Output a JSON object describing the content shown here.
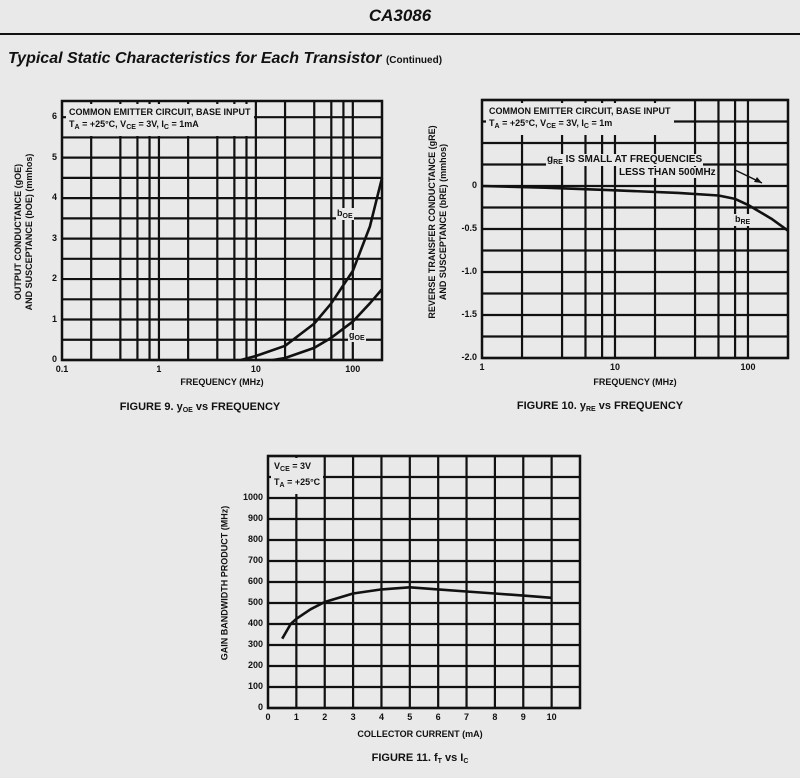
{
  "header": {
    "part_number": "CA3086"
  },
  "section": {
    "title": "Typical Static Characteristics for Each Transistor",
    "note": "(Continued)"
  },
  "chart_data": [
    {
      "type": "line",
      "caption": {
        "prefix": "FIGURE 9.  y",
        "sub": "OE",
        "suffix": " vs FREQUENCY"
      },
      "conditions": [
        [
          {
            "t": "COMMON EMITTER CIRCUIT, BASE INPUT"
          }
        ],
        [
          {
            "t": "T"
          },
          {
            "s": "A"
          },
          {
            "t": " = +25°C, V"
          },
          {
            "s": "CE"
          },
          {
            "t": " = 3V, I"
          },
          {
            "s": "C"
          },
          {
            "t": " = 1mA"
          }
        ]
      ],
      "xlabel": "FREQUENCY (MHz)",
      "ylabel": [
        "OUTPUT CONDUCTANCE (gOE)",
        "AND SUSCEPTANCE (bOE) (mmhos)"
      ],
      "xscale": "log",
      "xlim": [
        0.1,
        200
      ],
      "ylim": [
        0,
        6.4
      ],
      "xticks": [
        {
          "v": 0.1,
          "label": "0.1"
        },
        {
          "v": 1,
          "label": "1"
        },
        {
          "v": 10,
          "label": "10"
        },
        {
          "v": 100,
          "label": "100"
        }
      ],
      "yticks": [
        {
          "v": 0,
          "label": "0"
        },
        {
          "v": 1,
          "label": "1"
        },
        {
          "v": 2,
          "label": "2"
        },
        {
          "v": 3,
          "label": "3"
        },
        {
          "v": 4,
          "label": "4"
        },
        {
          "v": 5,
          "label": "5"
        },
        {
          "v": 6,
          "label": "6"
        }
      ],
      "grid": true,
      "series": [
        {
          "name": "bOE",
          "label": {
            "main": "b",
            "sub": "OE"
          },
          "x": [
            7,
            10,
            20,
            40,
            60,
            100,
            150,
            200
          ],
          "y": [
            0,
            0.1,
            0.35,
            0.9,
            1.4,
            2.2,
            3.3,
            4.5
          ]
        },
        {
          "name": "gOE",
          "label": {
            "main": "g",
            "sub": "OE"
          },
          "x": [
            15,
            20,
            40,
            60,
            100,
            150,
            200
          ],
          "y": [
            0,
            0.05,
            0.3,
            0.55,
            0.95,
            1.4,
            1.75
          ]
        }
      ]
    },
    {
      "type": "line",
      "caption": {
        "prefix": "FIGURE 10.  y",
        "sub": "RE",
        "suffix": " vs FREQUENCY"
      },
      "conditions": [
        [
          {
            "t": "COMMON EMITTER CIRCUIT, BASE INPUT"
          }
        ],
        [
          {
            "t": "T"
          },
          {
            "s": "A"
          },
          {
            "t": " = +25°C, V"
          },
          {
            "s": "CE"
          },
          {
            "t": " = 3V, I"
          },
          {
            "s": "C"
          },
          {
            "t": " = 1m"
          }
        ]
      ],
      "annotation": {
        "line1_main": "g",
        "line1_sub": "RE",
        "line1_rest": " IS SMALL AT FREQUENCIES",
        "line2": "LESS THAN 500MHz"
      },
      "xlabel": "FREQUENCY (MHz)",
      "ylabel": [
        "REVERSE TRANSFER CONDUCTANCE (gRE)",
        "AND SUSCEPTANCE (bRE) (mmhos)"
      ],
      "xscale": "log",
      "xlim": [
        1,
        200
      ],
      "ylim": [
        -2.0,
        1.0
      ],
      "xticks": [
        {
          "v": 1,
          "label": "1"
        },
        {
          "v": 10,
          "label": "10"
        },
        {
          "v": 100,
          "label": "100"
        }
      ],
      "yticks": [
        {
          "v": 0,
          "label": "0"
        },
        {
          "v": -0.5,
          "label": "-0.5"
        },
        {
          "v": -1.0,
          "label": "-1.0"
        },
        {
          "v": -1.5,
          "label": "-1.5"
        },
        {
          "v": -2.0,
          "label": "-2.0"
        }
      ],
      "grid": true,
      "series": [
        {
          "name": "bRE",
          "label": {
            "main": "b",
            "sub": "RE"
          },
          "x": [
            1,
            3,
            10,
            30,
            60,
            80,
            100,
            150,
            200
          ],
          "y": [
            0,
            -0.02,
            -0.05,
            -0.08,
            -0.11,
            -0.15,
            -0.22,
            -0.38,
            -0.52
          ]
        }
      ]
    },
    {
      "type": "line",
      "caption": {
        "prefix": "FIGURE 11.  f",
        "sub": "T",
        "suffix": " vs I",
        "sub2": "C"
      },
      "conditions": [
        [
          {
            "t": "V"
          },
          {
            "s": "CE"
          },
          {
            "t": " = 3V"
          }
        ],
        [
          {
            "t": "T"
          },
          {
            "s": "A"
          },
          {
            "t": " = +25°C"
          }
        ]
      ],
      "xlabel": "COLLECTOR CURRENT (mA)",
      "ylabel": [
        "GAIN BANDWIDTH PRODUCT (MHz)"
      ],
      "xscale": "linear",
      "xlim": [
        0,
        11
      ],
      "ylim": [
        0,
        1200
      ],
      "xticks": [
        {
          "v": 0,
          "label": "0"
        },
        {
          "v": 1,
          "label": "1"
        },
        {
          "v": 2,
          "label": "2"
        },
        {
          "v": 3,
          "label": "3"
        },
        {
          "v": 4,
          "label": "4"
        },
        {
          "v": 5,
          "label": "5"
        },
        {
          "v": 6,
          "label": "6"
        },
        {
          "v": 7,
          "label": "7"
        },
        {
          "v": 8,
          "label": "8"
        },
        {
          "v": 9,
          "label": "9"
        },
        {
          "v": 10,
          "label": "10"
        }
      ],
      "yticks": [
        {
          "v": 0,
          "label": "0"
        },
        {
          "v": 100,
          "label": "100"
        },
        {
          "v": 200,
          "label": "200"
        },
        {
          "v": 300,
          "label": "300"
        },
        {
          "v": 400,
          "label": "400"
        },
        {
          "v": 500,
          "label": "500"
        },
        {
          "v": 600,
          "label": "600"
        },
        {
          "v": 700,
          "label": "700"
        },
        {
          "v": 800,
          "label": "800"
        },
        {
          "v": 900,
          "label": "900"
        },
        {
          "v": 1000,
          "label": "1000"
        }
      ],
      "grid": true,
      "series": [
        {
          "name": "fT",
          "x": [
            0.5,
            0.8,
            1,
            1.5,
            2,
            3,
            4,
            5,
            6,
            7,
            8,
            9,
            10
          ],
          "y": [
            330,
            400,
            425,
            470,
            505,
            545,
            565,
            575,
            565,
            555,
            545,
            535,
            525
          ]
        }
      ]
    }
  ]
}
